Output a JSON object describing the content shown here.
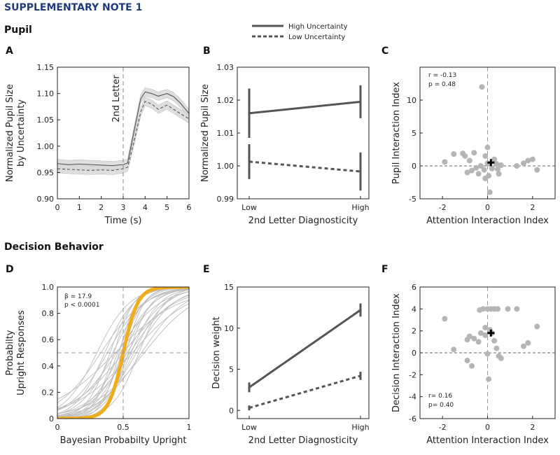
{
  "header": {
    "title": "SUPPLEMENTARY NOTE 1"
  },
  "sections": {
    "pupil": "Pupil",
    "decision": "Decision Behavior"
  },
  "legend": {
    "high": "High Uncertainty",
    "low": "Low Uncertainty"
  },
  "colors": {
    "dark": "#555555",
    "gray": "#9a9a9a",
    "band": "#d9d9d9",
    "orange": "#f0ad1a",
    "title": "#1f3b7a"
  },
  "chart_data": [
    {
      "id": "A",
      "type": "line",
      "panel_label": "A",
      "title": "",
      "xlabel": "Time (s)",
      "ylabel": [
        "Normalized Pupil Size",
        "by Uncertainty"
      ],
      "xlim": [
        0,
        6
      ],
      "ylim": [
        0.9,
        1.15
      ],
      "x_ticks": [
        "0",
        "1",
        "2",
        "3",
        "4",
        "5",
        "6"
      ],
      "y_ticks": [
        "0.90",
        "0.95",
        "1.00",
        "1.05",
        "1.10",
        "1.15"
      ],
      "annotation": "2nd Letter",
      "annotation_x": 3,
      "series": [
        {
          "name": "High Uncertainty",
          "style": "solid",
          "x": [
            0,
            0.5,
            1,
            1.5,
            2,
            2.5,
            3,
            3.2,
            3.5,
            3.8,
            4,
            4.3,
            4.6,
            5,
            5.3,
            5.6,
            6
          ],
          "y": [
            0.967,
            0.965,
            0.966,
            0.965,
            0.964,
            0.963,
            0.965,
            0.968,
            1.03,
            1.09,
            1.103,
            1.1,
            1.095,
            1.1,
            1.094,
            1.082,
            1.062
          ]
        },
        {
          "name": "Low Uncertainty",
          "style": "dashed",
          "x": [
            0,
            0.5,
            1,
            1.5,
            2,
            2.5,
            3,
            3.2,
            3.5,
            3.8,
            4,
            4.3,
            4.6,
            5,
            5.3,
            5.6,
            6
          ],
          "y": [
            0.957,
            0.956,
            0.955,
            0.954,
            0.955,
            0.954,
            0.957,
            0.96,
            1.01,
            1.065,
            1.085,
            1.08,
            1.07,
            1.078,
            1.07,
            1.062,
            1.052
          ]
        }
      ]
    },
    {
      "id": "B",
      "type": "line",
      "panel_label": "B",
      "xlabel": "2nd Letter Diagnosticity",
      "ylabel": "Normalized Pupil Size",
      "categories": [
        "Low",
        "High"
      ],
      "ylim": [
        0.99,
        1.03
      ],
      "y_ticks": [
        "0.99",
        "1.00",
        "1.01",
        "1.02",
        "1.03"
      ],
      "series": [
        {
          "name": "High Uncertainty",
          "style": "solid",
          "values": [
            1.016,
            1.0195
          ],
          "err": [
            0.0075,
            0.005
          ]
        },
        {
          "name": "Low Uncertainty",
          "style": "dashed",
          "values": [
            1.0013,
            0.9983
          ],
          "err": [
            0.0053,
            0.0058
          ]
        }
      ]
    },
    {
      "id": "C",
      "type": "scatter",
      "panel_label": "C",
      "xlabel": "Attention Interaction Index",
      "ylabel": "Pupil Interaction Index",
      "xlim": [
        -3,
        3
      ],
      "ylim": [
        -5,
        15
      ],
      "x_ticks": [
        "-2",
        "0",
        "2"
      ],
      "y_ticks": [
        "-5",
        "0",
        "5",
        "10"
      ],
      "stats": [
        "r = -0.13",
        "p = 0.48"
      ],
      "mean": [
        0.15,
        0.5
      ],
      "points": [
        [
          -1.9,
          0.6
        ],
        [
          -1.0,
          1.5
        ],
        [
          -1.1,
          1.9
        ],
        [
          -0.8,
          0.8
        ],
        [
          -0.6,
          2.0
        ],
        [
          -0.9,
          -1.0
        ],
        [
          -0.7,
          -0.7
        ],
        [
          -0.5,
          -0.3
        ],
        [
          -0.4,
          -1.2
        ],
        [
          -0.3,
          0.0
        ],
        [
          -0.1,
          1.5
        ],
        [
          0.0,
          2.8
        ],
        [
          -0.15,
          -0.6
        ],
        [
          -0.1,
          -1.9
        ],
        [
          0.0,
          0.4
        ],
        [
          0.3,
          1.0
        ],
        [
          0.2,
          -0.4
        ],
        [
          0.4,
          0.3
        ],
        [
          0.5,
          -1.2
        ],
        [
          0.6,
          0.1
        ],
        [
          1.3,
          0.0
        ],
        [
          1.6,
          0.4
        ],
        [
          1.8,
          0.8
        ],
        [
          2.0,
          1.0
        ],
        [
          2.2,
          -0.6
        ],
        [
          0.1,
          -4.0
        ],
        [
          -0.25,
          12.0
        ],
        [
          0.05,
          -1.5
        ],
        [
          -1.5,
          1.8
        ],
        [
          0.45,
          -0.5
        ]
      ]
    },
    {
      "id": "D",
      "type": "line",
      "panel_label": "D",
      "xlabel": "Bayesian Probabilty Upright",
      "ylabel": [
        "Probabilty",
        "Upright Responses"
      ],
      "xlim": [
        0,
        1
      ],
      "ylim": [
        0,
        1
      ],
      "x_ticks": [
        "0",
        "0.5",
        "1"
      ],
      "y_ticks": [
        "0",
        "0.2",
        "0.4",
        "0.6",
        "0.8",
        "1.0"
      ],
      "stats": [
        "β = 17.9",
        "p < 0.0001"
      ],
      "group_slope": 17.9,
      "subjects": [
        {
          "mid": 0.3,
          "slope": 8
        },
        {
          "mid": 0.33,
          "slope": 6
        },
        {
          "mid": 0.36,
          "slope": 9
        },
        {
          "mid": 0.38,
          "slope": 7
        },
        {
          "mid": 0.4,
          "slope": 11
        },
        {
          "mid": 0.42,
          "slope": 8
        },
        {
          "mid": 0.43,
          "slope": 13
        },
        {
          "mid": 0.45,
          "slope": 6
        },
        {
          "mid": 0.46,
          "slope": 10
        },
        {
          "mid": 0.47,
          "slope": 15
        },
        {
          "mid": 0.48,
          "slope": 8
        },
        {
          "mid": 0.49,
          "slope": 12
        },
        {
          "mid": 0.5,
          "slope": 5
        },
        {
          "mid": 0.51,
          "slope": 9
        },
        {
          "mid": 0.52,
          "slope": 14
        },
        {
          "mid": 0.53,
          "slope": 7
        },
        {
          "mid": 0.54,
          "slope": 11
        },
        {
          "mid": 0.55,
          "slope": 6
        },
        {
          "mid": 0.56,
          "slope": 9
        },
        {
          "mid": 0.58,
          "slope": 8
        },
        {
          "mid": 0.6,
          "slope": 7
        },
        {
          "mid": 0.62,
          "slope": 10
        },
        {
          "mid": 0.64,
          "slope": 6
        },
        {
          "mid": 0.66,
          "slope": 5
        },
        {
          "mid": 0.44,
          "slope": 4
        },
        {
          "mid": 0.57,
          "slope": 4.5
        }
      ]
    },
    {
      "id": "E",
      "type": "line",
      "panel_label": "E",
      "xlabel": "2nd Letter Diagnosticity",
      "ylabel": "Decision weight",
      "categories": [
        "Low",
        "High"
      ],
      "ylim": [
        -1,
        15
      ],
      "y_ticks": [
        "0",
        "5",
        "10",
        "15"
      ],
      "series": [
        {
          "name": "High Uncertainty",
          "style": "solid",
          "values": [
            2.8,
            12.2
          ],
          "err": [
            0.6,
            0.8
          ]
        },
        {
          "name": "Low Uncertainty",
          "style": "dashed",
          "values": [
            0.3,
            4.2
          ],
          "err": [
            0.3,
            0.5
          ]
        }
      ]
    },
    {
      "id": "F",
      "type": "scatter",
      "panel_label": "F",
      "xlabel": "Attention Interaction Index",
      "ylabel": "Decision Interaction Index",
      "xlim": [
        -3,
        3
      ],
      "ylim": [
        -6,
        6
      ],
      "x_ticks": [
        "-2",
        "0",
        "2"
      ],
      "y_ticks": [
        "-6",
        "-4",
        "-2",
        "0",
        "2",
        "4",
        "6"
      ],
      "stats": [
        "r= 0.16",
        "p= 0.40"
      ],
      "mean": [
        0.15,
        1.8
      ],
      "points": [
        [
          -1.9,
          3.1
        ],
        [
          -1.5,
          0.3
        ],
        [
          -0.9,
          1.2
        ],
        [
          -0.8,
          1.5
        ],
        [
          -0.6,
          1.3
        ],
        [
          -0.4,
          1.0
        ],
        [
          -0.3,
          1.8
        ],
        [
          -0.2,
          4.0
        ],
        [
          -0.1,
          2.3
        ],
        [
          0.0,
          4.0
        ],
        [
          0.1,
          2.1
        ],
        [
          0.2,
          1.8
        ],
        [
          0.3,
          1.1
        ],
        [
          0.4,
          0.4
        ],
        [
          0.45,
          4.0
        ],
        [
          0.6,
          -0.5
        ],
        [
          0.0,
          -0.1
        ],
        [
          -0.9,
          -0.7
        ],
        [
          -0.7,
          -1.2
        ],
        [
          0.05,
          -2.4
        ],
        [
          -0.1,
          1.6
        ],
        [
          0.3,
          4.0
        ],
        [
          0.9,
          4.0
        ],
        [
          1.3,
          4.0
        ],
        [
          1.6,
          0.6
        ],
        [
          1.8,
          0.9
        ],
        [
          2.2,
          2.4
        ],
        [
          0.5,
          -0.3
        ],
        [
          -0.35,
          3.9
        ],
        [
          0.15,
          4.0
        ]
      ]
    }
  ]
}
